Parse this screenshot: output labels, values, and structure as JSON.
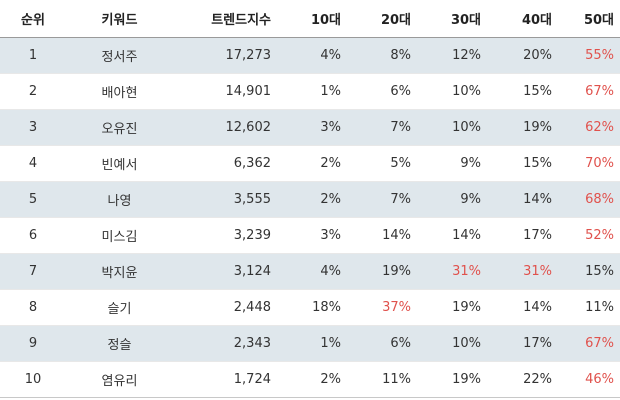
{
  "columns": {
    "rank": "순위",
    "keyword": "키워드",
    "index": "트렌드지수",
    "age10": "10대",
    "age20": "20대",
    "age30": "30대",
    "age40": "40대",
    "age50": "50대"
  },
  "highlight_color": "#e0524d",
  "rows": [
    {
      "rank": "1",
      "keyword": "정서주",
      "index": "17,273",
      "age10": "4%",
      "age20": "8%",
      "age30": "12%",
      "age40": "20%",
      "age50": "55%",
      "highlight": [
        "age50"
      ]
    },
    {
      "rank": "2",
      "keyword": "배아현",
      "index": "14,901",
      "age10": "1%",
      "age20": "6%",
      "age30": "10%",
      "age40": "15%",
      "age50": "67%",
      "highlight": [
        "age50"
      ]
    },
    {
      "rank": "3",
      "keyword": "오유진",
      "index": "12,602",
      "age10": "3%",
      "age20": "7%",
      "age30": "10%",
      "age40": "19%",
      "age50": "62%",
      "highlight": [
        "age50"
      ]
    },
    {
      "rank": "4",
      "keyword": "빈예서",
      "index": "6,362",
      "age10": "2%",
      "age20": "5%",
      "age30": "9%",
      "age40": "15%",
      "age50": "70%",
      "highlight": [
        "age50"
      ]
    },
    {
      "rank": "5",
      "keyword": "나영",
      "index": "3,555",
      "age10": "2%",
      "age20": "7%",
      "age30": "9%",
      "age40": "14%",
      "age50": "68%",
      "highlight": [
        "age50"
      ]
    },
    {
      "rank": "6",
      "keyword": "미스김",
      "index": "3,239",
      "age10": "3%",
      "age20": "14%",
      "age30": "14%",
      "age40": "17%",
      "age50": "52%",
      "highlight": [
        "age50"
      ]
    },
    {
      "rank": "7",
      "keyword": "박지윤",
      "index": "3,124",
      "age10": "4%",
      "age20": "19%",
      "age30": "31%",
      "age40": "31%",
      "age50": "15%",
      "highlight": [
        "age30",
        "age40"
      ]
    },
    {
      "rank": "8",
      "keyword": "슬기",
      "index": "2,448",
      "age10": "18%",
      "age20": "37%",
      "age30": "19%",
      "age40": "14%",
      "age50": "11%",
      "highlight": [
        "age20"
      ]
    },
    {
      "rank": "9",
      "keyword": "정슬",
      "index": "2,343",
      "age10": "1%",
      "age20": "6%",
      "age30": "10%",
      "age40": "17%",
      "age50": "67%",
      "highlight": [
        "age50"
      ]
    },
    {
      "rank": "10",
      "keyword": "염유리",
      "index": "1,724",
      "age10": "2%",
      "age20": "11%",
      "age30": "19%",
      "age40": "22%",
      "age50": "46%",
      "highlight": [
        "age50"
      ]
    }
  ]
}
